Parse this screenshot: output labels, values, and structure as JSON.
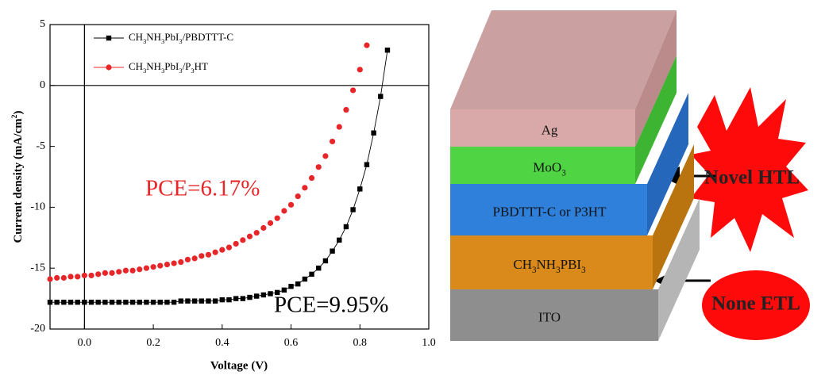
{
  "chart_data": {
    "type": "scatter",
    "xlabel": "Voltage (V)",
    "ylabel": "Current density (mA/cm2)",
    "xlim": [
      -0.1,
      1.0
    ],
    "ylim": [
      -20,
      5
    ],
    "xticks": [
      {
        "value": 0,
        "label": "0.0"
      },
      0.2,
      0.4,
      0.6,
      0.8,
      {
        "value": 1,
        "label": "1.0"
      }
    ],
    "yticks": [
      5,
      0,
      -5,
      -10,
      -15,
      -20
    ],
    "series": [
      {
        "name": "CH3NH3PbI3/PBDTTT-C",
        "color": "#000000",
        "marker": "square",
        "connect": true,
        "x": [
          -0.1,
          -0.08,
          -0.06,
          -0.04,
          -0.02,
          0,
          0.02,
          0.04,
          0.06,
          0.08,
          0.1,
          0.12,
          0.14,
          0.16,
          0.18,
          0.2,
          0.22,
          0.24,
          0.26,
          0.28,
          0.3,
          0.32,
          0.34,
          0.36,
          0.38,
          0.4,
          0.42,
          0.44,
          0.46,
          0.48,
          0.5,
          0.52,
          0.54,
          0.56,
          0.58,
          0.6,
          0.62,
          0.64,
          0.66,
          0.68,
          0.7,
          0.72,
          0.74,
          0.76,
          0.78,
          0.8,
          0.82,
          0.84,
          0.86,
          0.88
        ],
        "values": [
          -17.8,
          -17.8,
          -17.8,
          -17.8,
          -17.8,
          -17.8,
          -17.8,
          -17.8,
          -17.8,
          -17.8,
          -17.8,
          -17.8,
          -17.8,
          -17.8,
          -17.8,
          -17.8,
          -17.8,
          -17.8,
          -17.8,
          -17.7,
          -17.7,
          -17.7,
          -17.7,
          -17.7,
          -17.7,
          -17.6,
          -17.6,
          -17.5,
          -17.5,
          -17.4,
          -17.3,
          -17.2,
          -17.1,
          -17.0,
          -16.8,
          -16.5,
          -16.3,
          -15.9,
          -15.5,
          -15.0,
          -14.4,
          -13.6,
          -12.7,
          -11.6,
          -10.2,
          -8.5,
          -6.5,
          -3.9,
          -0.9,
          2.9
        ]
      },
      {
        "name": "CH3NH3PbI3/P3HT",
        "color": "#e8262a",
        "marker": "circle",
        "connect": false,
        "x": [
          -0.1,
          -0.08,
          -0.06,
          -0.04,
          -0.02,
          0,
          0.02,
          0.04,
          0.06,
          0.08,
          0.1,
          0.12,
          0.14,
          0.16,
          0.18,
          0.2,
          0.22,
          0.24,
          0.26,
          0.28,
          0.3,
          0.32,
          0.34,
          0.36,
          0.38,
          0.4,
          0.42,
          0.44,
          0.46,
          0.48,
          0.5,
          0.52,
          0.54,
          0.56,
          0.58,
          0.6,
          0.62,
          0.64,
          0.66,
          0.68,
          0.7,
          0.72,
          0.74,
          0.76,
          0.78,
          0.8,
          0.82
        ],
        "values": [
          -15.9,
          -15.8,
          -15.8,
          -15.7,
          -15.7,
          -15.6,
          -15.6,
          -15.5,
          -15.4,
          -15.4,
          -15.3,
          -15.2,
          -15.2,
          -15.1,
          -15.0,
          -14.9,
          -14.8,
          -14.7,
          -14.6,
          -14.5,
          -14.3,
          -14.2,
          -14.0,
          -13.9,
          -13.7,
          -13.5,
          -13.3,
          -13.0,
          -12.7,
          -12.4,
          -12.1,
          -11.7,
          -11.3,
          -10.9,
          -10.3,
          -9.8,
          -9.1,
          -8.4,
          -7.6,
          -6.7,
          -5.8,
          -4.6,
          -3.4,
          -2.0,
          -0.4,
          1.3,
          3.3
        ]
      }
    ],
    "annotations": [
      {
        "text": "PCE=6.17%",
        "color": "#e8262a"
      },
      {
        "text": "PCE=9.95%",
        "color": "#000000"
      }
    ]
  },
  "diagram": {
    "layers": [
      {
        "label": "Ag"
      },
      {
        "label": "MoO3"
      },
      {
        "label": "PBDTTT-C or P3HT"
      },
      {
        "label": "CH3NH3PBI3"
      },
      {
        "label": "ITO"
      }
    ],
    "callouts": [
      {
        "label": "Novel HTL"
      },
      {
        "label": "None ETL"
      }
    ]
  }
}
